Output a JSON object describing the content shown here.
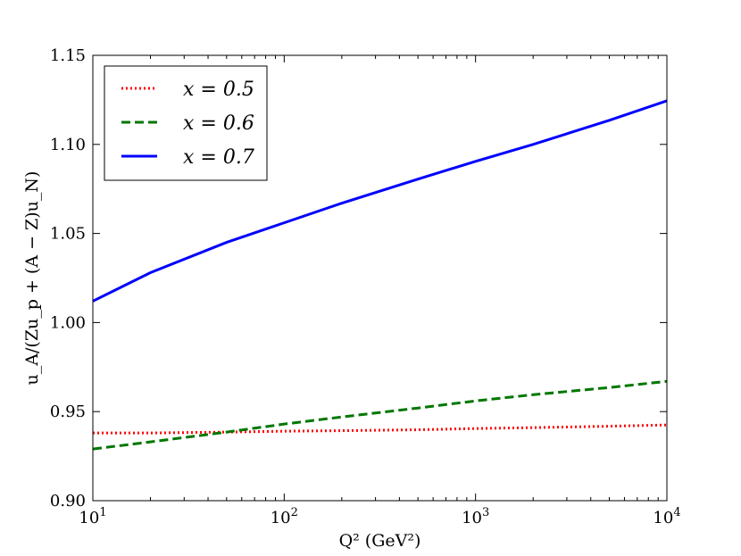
{
  "chart_data": {
    "type": "line",
    "title": "",
    "xlabel": "Q² (GeV²)",
    "ylabel": "u_A/(Zu_p + (A − Z)u_N)",
    "xscale": "log",
    "xlim": [
      10,
      10000
    ],
    "ylim": [
      0.9,
      1.15
    ],
    "x_ticks": [
      10,
      100,
      1000,
      10000
    ],
    "x_tick_labels": [
      {
        "base": "10",
        "exp": "1"
      },
      {
        "base": "10",
        "exp": "2"
      },
      {
        "base": "10",
        "exp": "3"
      },
      {
        "base": "10",
        "exp": "4"
      }
    ],
    "y_ticks": [
      0.9,
      0.95,
      1.0,
      1.05,
      1.1,
      1.15
    ],
    "y_tick_labels": [
      "0.90",
      "0.95",
      "1.00",
      "1.05",
      "1.10",
      "1.15"
    ],
    "grid": false,
    "legend_position": "top-left",
    "series": [
      {
        "name": "x = 0.5",
        "color": "#ff0000",
        "style": "dotted",
        "x": [
          10,
          20,
          50,
          100,
          200,
          500,
          1000,
          2000,
          5000,
          10000
        ],
        "y": [
          0.938,
          0.938,
          0.9385,
          0.939,
          0.9393,
          0.9398,
          0.9405,
          0.941,
          0.9418,
          0.9425
        ]
      },
      {
        "name": "x = 0.6",
        "color": "#007700",
        "style": "dashed",
        "x": [
          10,
          20,
          50,
          100,
          200,
          500,
          1000,
          2000,
          5000,
          10000
        ],
        "y": [
          0.929,
          0.933,
          0.9385,
          0.943,
          0.947,
          0.952,
          0.956,
          0.9595,
          0.9635,
          0.967
        ]
      },
      {
        "name": "x = 0.7",
        "color": "#0000ff",
        "style": "solid",
        "x": [
          10,
          20,
          50,
          100,
          200,
          500,
          1000,
          2000,
          5000,
          10000
        ],
        "y": [
          1.012,
          1.028,
          1.045,
          1.056,
          1.067,
          1.0805,
          1.0905,
          1.1,
          1.1135,
          1.1245
        ]
      }
    ]
  }
}
